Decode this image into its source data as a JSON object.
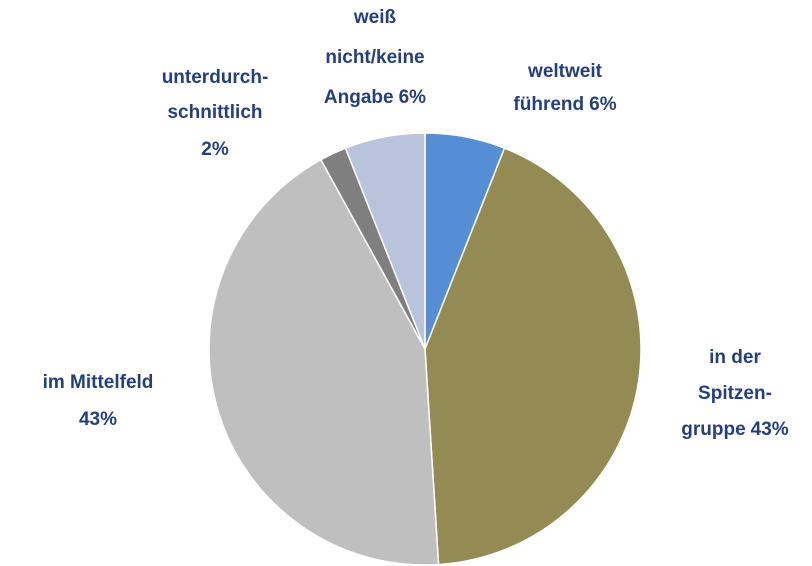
{
  "chart_data": {
    "type": "pie",
    "categories": [
      "weltweit\nführend",
      "in der\nSpitzen-\ngruppe",
      "im Mittelfeld",
      "unterdurch-\nschnittlich",
      "weiß\nnicht/keine\nAngabe"
    ],
    "values": [
      6,
      43,
      43,
      2,
      6
    ],
    "value_labels": [
      "6%",
      "43%",
      "43%",
      "2%",
      "6%"
    ],
    "colors": [
      "#558ed5",
      "#948a54",
      "#bfbfbf",
      "#7f7f7f",
      "#b9c3dc"
    ]
  }
}
